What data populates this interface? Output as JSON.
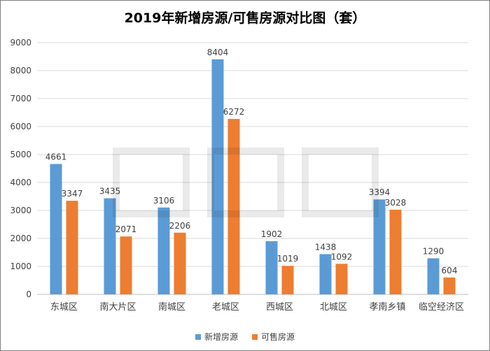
{
  "chart_data": {
    "type": "bar",
    "title": "2019年新增房源/可售房源对比图（套）",
    "categories": [
      "东城区",
      "南大片区",
      "南城区",
      "老城区",
      "西城区",
      "北城区",
      "孝南乡镇",
      "临空经济区"
    ],
    "series": [
      {
        "name": "新增房源",
        "values": [
          4661,
          3435,
          3106,
          8404,
          1902,
          1438,
          3394,
          1290
        ],
        "color": "#5b9bd5"
      },
      {
        "name": "可售房源",
        "values": [
          3347,
          2071,
          2206,
          6272,
          1019,
          1092,
          3028,
          604
        ],
        "color": "#ed7d31"
      }
    ],
    "ylim": [
      0,
      9000
    ],
    "yticks": [
      0,
      1000,
      2000,
      3000,
      4000,
      5000,
      6000,
      7000,
      8000,
      9000
    ],
    "grid": true,
    "legend": "bottom"
  }
}
